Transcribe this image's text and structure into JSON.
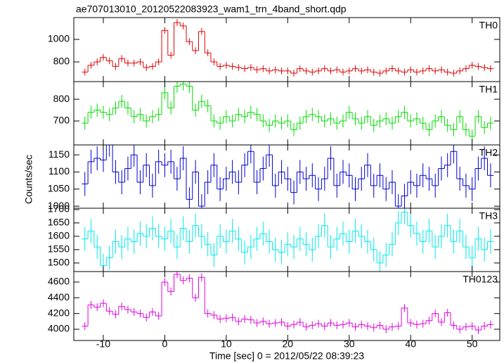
{
  "chart_data": {
    "type": "step",
    "title": "ae707013010_20120522083923_wam1_trn_4band_short.qdp",
    "xlabel": "Time [sec] 0 = 2012/05/22 08:39:23",
    "ylabel": "Counts/sec",
    "xlim": [
      -14.8,
      54.5
    ],
    "xticks": [
      -10,
      0,
      10,
      20,
      30,
      40,
      50
    ],
    "x": [
      -13,
      -12,
      -11,
      -10,
      -9,
      -8,
      -7,
      -6,
      -5,
      -4,
      -3,
      -2,
      -1,
      0,
      1,
      2,
      3,
      4,
      5,
      6,
      7,
      8,
      9,
      10,
      11,
      12,
      13,
      14,
      15,
      16,
      17,
      18,
      19,
      20,
      21,
      22,
      23,
      24,
      25,
      26,
      27,
      28,
      29,
      30,
      31,
      32,
      33,
      34,
      35,
      36,
      37,
      38,
      39,
      40,
      41,
      42,
      43,
      44,
      45,
      46,
      47,
      48,
      49,
      50,
      51,
      52,
      53
    ],
    "panels": [
      {
        "label": "TH0",
        "color": "#e00000",
        "ylim": [
          625,
          1194
        ],
        "yticks": [
          800,
          1000
        ],
        "error": 30,
        "values": [
          710,
          770,
          800,
          840,
          810,
          760,
          830,
          790,
          790,
          800,
          750,
          760,
          800,
          1080,
          860,
          1150,
          1120,
          980,
          900,
          1070,
          880,
          800,
          760,
          770,
          760,
          750,
          740,
          750,
          730,
          740,
          720,
          730,
          720,
          720,
          700,
          740,
          720,
          710,
          720,
          740,
          720,
          730,
          710,
          720,
          740,
          720,
          730,
          710,
          700,
          720,
          740,
          720,
          710,
          730,
          710,
          720,
          740,
          720,
          730,
          710,
          700,
          720,
          740,
          770,
          760,
          750,
          740
        ]
      },
      {
        "label": "TH1",
        "color": "#00dd00",
        "ylim": [
          590,
          881
        ],
        "yticks": [
          700,
          800
        ],
        "error": 30,
        "values": [
          690,
          740,
          750,
          740,
          730,
          760,
          790,
          760,
          720,
          730,
          700,
          720,
          730,
          830,
          760,
          860,
          870,
          860,
          750,
          790,
          770,
          700,
          690,
          720,
          700,
          730,
          720,
          740,
          730,
          700,
          680,
          700,
          690,
          700,
          660,
          690,
          720,
          730,
          720,
          700,
          710,
          690,
          700,
          740,
          710,
          690,
          720,
          680,
          700,
          710,
          690,
          720,
          740,
          700,
          710,
          690,
          660,
          700,
          720,
          680,
          660,
          720,
          660,
          630,
          720,
          670,
          690
        ]
      },
      {
        "label": "TH2",
        "color": "#0000cc",
        "ylim": [
          994,
          1179
        ],
        "yticks": [
          1000,
          1050,
          1100,
          1150
        ],
        "error": 35,
        "values": [
          1065,
          1130,
          1140,
          1135,
          1180,
          1100,
          1070,
          1110,
          1150,
          1070,
          1120,
          1060,
          1130,
          1120,
          1130,
          1080,
          1140,
          1020,
          1100,
          1000,
          1070,
          1120,
          1050,
          1080,
          1100,
          1070,
          1120,
          1160,
          1070,
          1110,
          1150,
          1060,
          1100,
          1080,
          1040,
          1100,
          1080,
          1090,
          1050,
          1080,
          1140,
          1060,
          1100,
          1090,
          1050,
          1080,
          1120,
          1060,
          1090,
          1050,
          1070,
          1000,
          1030,
          1070,
          1060,
          1090,
          1080,
          1060,
          1110,
          1120,
          1160,
          1080,
          1060,
          1050,
          1110,
          1140,
          1090
        ]
      },
      {
        "label": "TH3",
        "color": "#00e8e8",
        "ylim": [
          1468,
          1705
        ],
        "yticks": [
          1500,
          1550,
          1600,
          1650,
          1700
        ],
        "error": 45,
        "values": [
          1590,
          1620,
          1560,
          1490,
          1520,
          1580,
          1560,
          1590,
          1580,
          1610,
          1600,
          1630,
          1600,
          1590,
          1620,
          1560,
          1630,
          1580,
          1640,
          1600,
          1570,
          1530,
          1600,
          1580,
          1620,
          1590,
          1540,
          1560,
          1590,
          1610,
          1580,
          1550,
          1540,
          1570,
          1560,
          1590,
          1570,
          1550,
          1600,
          1640,
          1560,
          1590,
          1610,
          1580,
          1620,
          1600,
          1580,
          1550,
          1500,
          1530,
          1570,
          1650,
          1690,
          1640,
          1610,
          1580,
          1620,
          1560,
          1600,
          1640,
          1580,
          1620,
          1560,
          1520,
          1590,
          1550,
          1580
        ]
      },
      {
        "label": "TH0123",
        "color": "#e000e0",
        "ylim": [
          3857,
          4734
        ],
        "yticks": [
          4000,
          4200,
          4400,
          4600
        ],
        "error": 50,
        "values": [
          4040,
          4310,
          4280,
          4330,
          4230,
          4190,
          4290,
          4250,
          4220,
          4200,
          4150,
          4220,
          4170,
          4600,
          4480,
          4700,
          4620,
          4650,
          4400,
          4660,
          4200,
          4180,
          4130,
          4140,
          4150,
          4100,
          4130,
          4120,
          4080,
          4100,
          4070,
          4080,
          4090,
          4040,
          4060,
          4090,
          4030,
          4050,
          4070,
          4040,
          4080,
          4050,
          4060,
          4080,
          4030,
          4060,
          4040,
          4020,
          4050,
          4000,
          4030,
          4040,
          4270,
          4080,
          4060,
          4070,
          4110,
          4200,
          4090,
          4210,
          4050,
          4000,
          4030,
          4040,
          3990,
          4040,
          4060
        ]
      }
    ]
  }
}
